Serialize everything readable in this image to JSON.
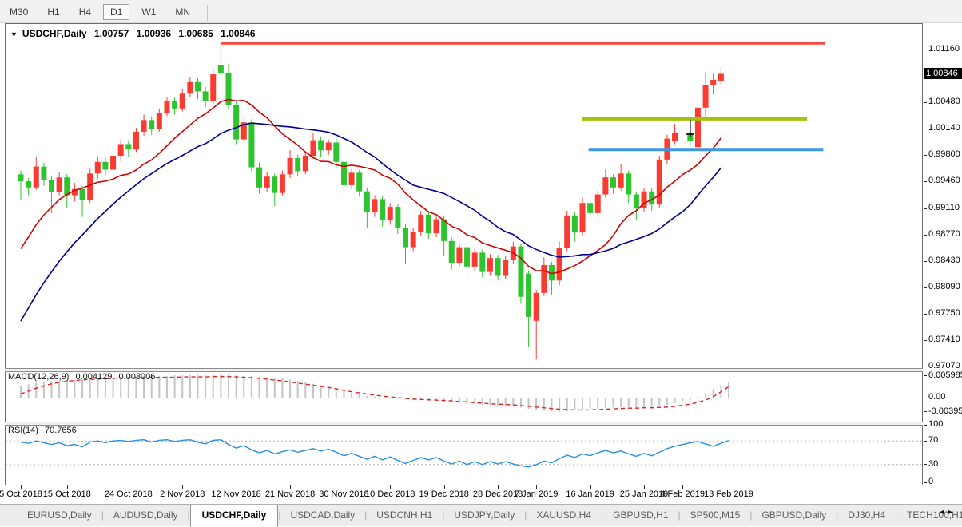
{
  "toolbar": {
    "periods": [
      "M30",
      "H1",
      "H4",
      "D1",
      "W1",
      "MN"
    ],
    "active_period": "D1"
  },
  "chart_window": {
    "title": {
      "symbol": "USDCHF,Daily",
      "open": "1.00757",
      "high": "1.00936",
      "low": "1.00685",
      "close": "1.00846"
    }
  },
  "chart_data": {
    "type": "candlestick",
    "symbol": "USDCHF",
    "timeframe": "Daily",
    "last_ohlc": {
      "open": 1.00757,
      "high": 1.00936,
      "low": 1.00685,
      "close": 1.00846
    },
    "price_axis": {
      "labels": [
        [
          "1.01160",
          1.0116
        ],
        [
          "1.00480",
          1.0048
        ],
        [
          "1.00140",
          1.0014
        ],
        [
          "0.99800",
          0.998
        ],
        [
          "0.99460",
          0.9946
        ],
        [
          "0.99110",
          0.9911
        ],
        [
          "0.98770",
          0.9877
        ],
        [
          "0.98430",
          0.9843
        ],
        [
          "0.98090",
          0.9809
        ],
        [
          "0.97750",
          0.9775
        ],
        [
          "0.97410",
          0.9741
        ],
        [
          "0.97070",
          0.9707
        ]
      ],
      "current": {
        "label": "1.00846",
        "price": 1.00846
      }
    },
    "date_axis": [
      {
        "index": 0,
        "label": "5 Oct 2018"
      },
      {
        "index": 6,
        "label": "15 Oct 2018"
      },
      {
        "index": 14,
        "label": "24 Oct 2018"
      },
      {
        "index": 21,
        "label": "2 Nov 2018"
      },
      {
        "index": 28,
        "label": "12 Nov 2018"
      },
      {
        "index": 35,
        "label": "21 Nov 2018"
      },
      {
        "index": 42,
        "label": "30 Nov 2018"
      },
      {
        "index": 48,
        "label": "10 Dec 2018"
      },
      {
        "index": 55,
        "label": "19 Dec 2018"
      },
      {
        "index": 62,
        "label": "28 Dec 2018"
      },
      {
        "index": 67,
        "label": "7 Jan 2019"
      },
      {
        "index": 74,
        "label": "16 Jan 2019"
      },
      {
        "index": 81,
        "label": "25 Jan 2019"
      },
      {
        "index": 86,
        "label": "4 Feb 2019"
      },
      {
        "index": 92,
        "label": "13 Feb 2019"
      }
    ],
    "candles": [
      [
        0.9955,
        0.996,
        0.9922,
        0.9946
      ],
      [
        0.9946,
        0.995,
        0.9928,
        0.9938
      ],
      [
        0.9938,
        0.9978,
        0.9935,
        0.9965
      ],
      [
        0.9965,
        0.997,
        0.994,
        0.9948
      ],
      [
        0.9948,
        0.9952,
        0.9905,
        0.9932
      ],
      [
        0.9932,
        0.9958,
        0.9928,
        0.9951
      ],
      [
        0.9951,
        0.9955,
        0.9912,
        0.9928
      ],
      [
        0.9928,
        0.9944,
        0.992,
        0.9936
      ],
      [
        0.9936,
        0.994,
        0.99,
        0.9922
      ],
      [
        0.9922,
        0.9962,
        0.9918,
        0.9956
      ],
      [
        0.9956,
        0.9978,
        0.995,
        0.9971
      ],
      [
        0.9971,
        0.9976,
        0.9952,
        0.9961
      ],
      [
        0.9961,
        0.9985,
        0.9958,
        0.9979
      ],
      [
        0.9979,
        1.0,
        0.9972,
        0.9994
      ],
      [
        0.9994,
        0.9999,
        0.9978,
        0.9987
      ],
      [
        0.9987,
        1.0015,
        0.9984,
        1.001
      ],
      [
        1.001,
        1.0032,
        1.0005,
        1.0025
      ],
      [
        1.0025,
        1.003,
        1.0006,
        1.0013
      ],
      [
        1.0013,
        1.004,
        1.001,
        1.0034
      ],
      [
        1.0034,
        1.0055,
        1.003,
        1.0049
      ],
      [
        1.0049,
        1.0054,
        1.0032,
        1.004
      ],
      [
        1.004,
        1.0065,
        1.0036,
        1.0059
      ],
      [
        1.0059,
        1.008,
        1.0055,
        1.0074
      ],
      [
        1.0074,
        1.0079,
        1.0052,
        1.0062
      ],
      [
        1.0062,
        1.0068,
        1.0042,
        1.005
      ],
      [
        1.005,
        1.009,
        1.0046,
        1.0084
      ],
      [
        1.0096,
        1.0124,
        1.0082,
        1.0086
      ],
      [
        1.0086,
        1.0098,
        1.0038,
        1.0044
      ],
      [
        1.0044,
        1.005,
        0.9994,
        1.0
      ],
      [
        1.0,
        1.0028,
        0.9996,
        1.0022
      ],
      [
        1.0022,
        1.0026,
        0.9958,
        0.9964
      ],
      [
        0.9964,
        0.997,
        0.993,
        0.9938
      ],
      [
        0.9938,
        0.9958,
        0.9932,
        0.9952
      ],
      [
        0.9952,
        0.9956,
        0.9914,
        0.9931
      ],
      [
        0.9931,
        0.996,
        0.9928,
        0.9955
      ],
      [
        0.9955,
        0.9986,
        0.995,
        0.9976
      ],
      [
        0.9976,
        0.998,
        0.9952,
        0.9959
      ],
      [
        0.9959,
        0.9984,
        0.9955,
        0.9979
      ],
      [
        0.9979,
        1.0008,
        0.9975,
        0.9999
      ],
      [
        0.9999,
        1.0004,
        0.9978,
        0.9986
      ],
      [
        0.9986,
        1.0,
        0.998,
        0.9996
      ],
      [
        0.9996,
        1.0001,
        0.9964,
        0.9971
      ],
      [
        0.9971,
        0.9976,
        0.9925,
        0.9941
      ],
      [
        0.9941,
        0.9962,
        0.9936,
        0.9957
      ],
      [
        0.9957,
        0.9961,
        0.9926,
        0.9933
      ],
      [
        0.9933,
        0.9938,
        0.9886,
        0.9906
      ],
      [
        0.9906,
        0.9928,
        0.99,
        0.9923
      ],
      [
        0.9923,
        0.9927,
        0.9888,
        0.9896
      ],
      [
        0.9896,
        0.9918,
        0.989,
        0.9913
      ],
      [
        0.9913,
        0.9917,
        0.9878,
        0.9886
      ],
      [
        0.9886,
        0.9891,
        0.984,
        0.9861
      ],
      [
        0.9861,
        0.9886,
        0.9856,
        0.9881
      ],
      [
        0.9881,
        0.9908,
        0.9876,
        0.9903
      ],
      [
        0.9903,
        0.9907,
        0.9872,
        0.9879
      ],
      [
        0.9879,
        0.9902,
        0.9874,
        0.9897
      ],
      [
        0.9897,
        0.9901,
        0.985,
        0.9869
      ],
      [
        0.9869,
        0.9874,
        0.9832,
        0.9841
      ],
      [
        0.9841,
        0.9866,
        0.9836,
        0.9861
      ],
      [
        0.9861,
        0.9865,
        0.9815,
        0.9836
      ],
      [
        0.9836,
        0.9859,
        0.983,
        0.9854
      ],
      [
        0.9854,
        0.9858,
        0.9822,
        0.9829
      ],
      [
        0.9829,
        0.9852,
        0.9824,
        0.9847
      ],
      [
        0.9847,
        0.9851,
        0.9818,
        0.9824
      ],
      [
        0.9824,
        0.985,
        0.982,
        0.9845
      ],
      [
        0.9845,
        0.9868,
        0.984,
        0.9862
      ],
      [
        0.9862,
        0.9866,
        0.9788,
        0.9797
      ],
      [
        0.9827,
        0.9831,
        0.9732,
        0.9771
      ],
      [
        0.9766,
        0.9806,
        0.9716,
        0.9802
      ],
      [
        0.9802,
        0.9848,
        0.9798,
        0.9838
      ],
      [
        0.9838,
        0.9842,
        0.98,
        0.9818
      ],
      [
        0.9818,
        0.9868,
        0.9812,
        0.986
      ],
      [
        0.986,
        0.9908,
        0.9856,
        0.9902
      ],
      [
        0.9902,
        0.9906,
        0.9868,
        0.988
      ],
      [
        0.988,
        0.9925,
        0.9876,
        0.9918
      ],
      [
        0.9918,
        0.9922,
        0.9896,
        0.9905
      ],
      [
        0.9905,
        0.9934,
        0.99,
        0.9929
      ],
      [
        0.9929,
        0.9961,
        0.9925,
        0.9951
      ],
      [
        0.9951,
        0.9955,
        0.993,
        0.9938
      ],
      [
        0.9938,
        0.9968,
        0.9934,
        0.9956
      ],
      [
        0.9956,
        0.996,
        0.9918,
        0.9929
      ],
      [
        0.9929,
        0.9933,
        0.9896,
        0.9911
      ],
      [
        0.9911,
        0.9938,
        0.9906,
        0.9933
      ],
      [
        0.9933,
        0.9937,
        0.9908,
        0.9916
      ],
      [
        0.9916,
        0.9979,
        0.9912,
        0.9974
      ],
      [
        0.9974,
        1.0006,
        0.9968,
        1.0001
      ],
      [
        0.9998,
        1.002,
        0.9994,
        1.0009
      ],
      null,
      [
        1.0009,
        1.0023,
        0.9992,
        0.9998
      ],
      [
        0.999,
        1.0051,
        0.9986,
        1.0041
      ],
      [
        1.0041,
        1.0087,
        1.0025,
        1.007
      ],
      [
        1.007,
        1.0085,
        1.0058,
        1.0077
      ],
      [
        1.00757,
        1.00936,
        1.00685,
        1.00846
      ]
    ],
    "overlays": {
      "hlines": [
        {
          "name": "resistance-line",
          "price": 1.0124,
          "from_index": 26.0,
          "to_index": 104.5,
          "color": "#f94a41",
          "width": 3
        },
        {
          "name": "breakout-line",
          "price": 1.00265,
          "from_index": 73.0,
          "to_index": 102.2,
          "color": "#a2c30c",
          "width": 4
        },
        {
          "name": "support-line",
          "price": 0.9987,
          "from_index": 73.8,
          "to_index": 104.3,
          "color": "#3b97e6",
          "width": 4
        }
      ],
      "cross_marker": {
        "index": 87,
        "price_top": 1.00255,
        "price_bottom": 1.00025,
        "price_bar": 1.00068,
        "color": "#000000"
      }
    },
    "moving_averages": [
      {
        "name": "ma-fast",
        "period": 12,
        "color": "#d40000"
      },
      {
        "name": "ma-slow",
        "period": 22,
        "color": "#000090"
      }
    ],
    "style": {
      "up_color": "#f93b31",
      "down_color": "#2fc32f",
      "bg": "#ffffff"
    },
    "macd": {
      "label": "MACD(12,26,9)",
      "value_main": "0.004129",
      "value_signal": "0.003006",
      "hist_color": "#c4c4c4",
      "signal_color": "#e02020",
      "axis_labels": [
        [
          "0.005985",
          0.005985
        ],
        [
          "0.00",
          0
        ],
        [
          "-0.003954",
          -0.003954
        ]
      ],
      "hist": [
        0.0032,
        0.0036,
        0.004,
        0.0043,
        0.0045,
        0.0047,
        0.0048,
        0.0049,
        0.005,
        0.0051,
        0.0053,
        0.0054,
        0.0055,
        0.0057,
        0.0057,
        0.0058,
        0.0059,
        0.0059,
        0.006,
        0.006,
        0.0061,
        0.0061,
        0.0062,
        0.0062,
        0.0061,
        0.0062,
        0.0063,
        0.0062,
        0.0061,
        0.006,
        0.0059,
        0.0057,
        0.0056,
        0.0055,
        0.0053,
        0.005,
        0.0046,
        0.0042,
        0.0038,
        0.0034,
        0.003,
        0.0024,
        0.0018,
        0.0012,
        0.0008,
        0.0005,
        0.0002,
        -0.0001,
        -0.0003,
        -0.0004,
        -0.0006,
        -0.0007,
        -0.0007,
        -0.0008,
        -0.0008,
        -0.001,
        -0.0013,
        -0.0015,
        -0.0017,
        -0.0018,
        -0.002,
        -0.0021,
        -0.0022,
        -0.0023,
        -0.0024,
        -0.0027,
        -0.0031,
        -0.0034,
        -0.0036,
        -0.0038,
        -0.0039,
        -0.0037,
        -0.0035,
        -0.0033,
        -0.0031,
        -0.003,
        -0.0028,
        -0.0027,
        -0.0026,
        -0.0026,
        -0.0027,
        -0.0027,
        -0.0026,
        -0.0024,
        -0.002,
        -0.0015,
        -0.001,
        -0.0006,
        0.0002,
        0.0012,
        0.0024,
        0.0034,
        0.004129
      ],
      "signal": [
        0.001,
        0.0018,
        0.0026,
        0.0032,
        0.0038,
        0.0042,
        0.0045,
        0.0047,
        0.0049,
        0.005,
        0.0051,
        0.0052,
        0.0053,
        0.0054,
        0.0054,
        0.0055,
        0.0055,
        0.0055,
        0.0056,
        0.0056,
        0.0056,
        0.0057,
        0.0057,
        0.0057,
        0.0057,
        0.0058,
        0.0058,
        0.0058,
        0.0057,
        0.0056,
        0.0055,
        0.0053,
        0.0051,
        0.0048,
        0.0046,
        0.0043,
        0.004,
        0.0037,
        0.0034,
        0.0031,
        0.0028,
        0.0024,
        0.002,
        0.0016,
        0.0013,
        0.001,
        0.0007,
        0.0004,
        0.0002,
        0.0,
        -0.0002,
        -0.0004,
        -0.0005,
        -0.0006,
        -0.0007,
        -0.0008,
        -0.0009,
        -0.0011,
        -0.0012,
        -0.0014,
        -0.0015,
        -0.0017,
        -0.0018,
        -0.0019,
        -0.002,
        -0.0022,
        -0.0024,
        -0.0026,
        -0.0028,
        -0.003,
        -0.0032,
        -0.0033,
        -0.0034,
        -0.0034,
        -0.0034,
        -0.0033,
        -0.0032,
        -0.0031,
        -0.003,
        -0.0029,
        -0.0029,
        -0.0028,
        -0.0028,
        -0.0027,
        -0.0026,
        -0.0024,
        -0.0021,
        -0.0018,
        -0.0013,
        -0.0007,
        0.0003,
        0.0016,
        0.003006
      ]
    },
    "rsi": {
      "label": "RSI(14)",
      "value": "70.7656",
      "color": "#2a8fdf",
      "levels": [
        70,
        30
      ],
      "axis_labels": [
        [
          "100",
          100
        ],
        [
          "70",
          70
        ],
        [
          "30",
          30
        ],
        [
          "0",
          0
        ]
      ],
      "series": [
        68,
        66,
        70,
        67,
        64,
        67,
        62,
        64,
        60,
        68,
        70,
        67,
        70,
        71,
        69,
        71,
        72,
        68,
        71,
        72,
        69,
        71,
        72,
        68,
        65,
        71,
        72,
        64,
        58,
        62,
        55,
        50,
        54,
        48,
        52,
        55,
        51,
        54,
        57,
        53,
        56,
        51,
        45,
        49,
        44,
        39,
        44,
        38,
        43,
        37,
        32,
        37,
        42,
        38,
        42,
        36,
        31,
        36,
        30,
        35,
        30,
        35,
        31,
        35,
        31,
        28,
        26,
        30,
        36,
        33,
        40,
        46,
        42,
        48,
        45,
        50,
        54,
        50,
        53,
        48,
        44,
        49,
        45,
        51,
        57,
        61,
        64,
        67,
        69,
        65,
        61,
        66,
        70.77
      ]
    }
  },
  "tabs": {
    "items": [
      "EURUSD,Daily",
      "AUDUSD,Daily",
      "USDCHF,Daily",
      "USDCAD,Daily",
      "USDCNH,H1",
      "USDJPY,Daily",
      "XAUUSD,H4",
      "GBPUSD,H1",
      "SP500,M15",
      "GBPUSD,Daily",
      "DJ30,H4",
      "TECH100,H1"
    ],
    "active": "USDCHF,Daily",
    "overflow_item": "UI"
  }
}
